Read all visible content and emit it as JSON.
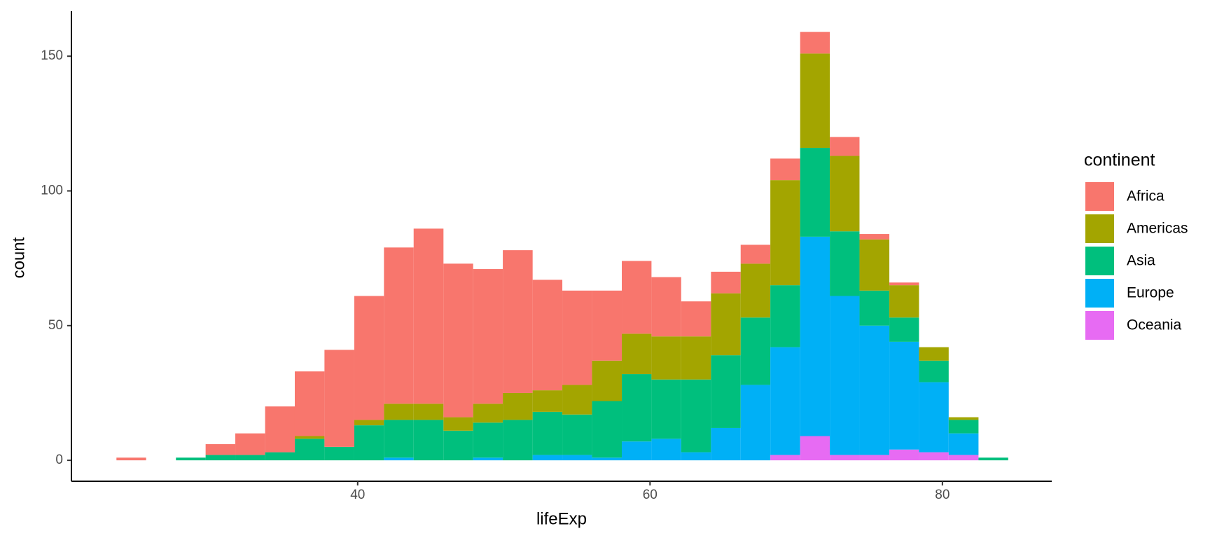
{
  "chart_data": {
    "type": "histogram",
    "x_label": "lifeExp",
    "y_label": "count",
    "legend_title": "continent",
    "legend_position": "right",
    "stacked": true,
    "grid": false,
    "bins": [
      23.5,
      25.53,
      27.57,
      29.6,
      31.63,
      33.67,
      35.7,
      37.73,
      39.77,
      41.8,
      43.83,
      45.87,
      47.9,
      49.93,
      51.97,
      54.0,
      56.03,
      58.07,
      60.1,
      62.13,
      64.17,
      66.2,
      68.23,
      70.27,
      72.3,
      74.33,
      76.37,
      78.4,
      80.43,
      82.47,
      84.5
    ],
    "series": [
      {
        "name": "Africa",
        "color": "#f8766d",
        "values": [
          1,
          0,
          0,
          4,
          8,
          17,
          24,
          36,
          46,
          58,
          65,
          57,
          50,
          53,
          41,
          35,
          26,
          27,
          22,
          13,
          8,
          7,
          8,
          8,
          7,
          2,
          1,
          0,
          0,
          0
        ]
      },
      {
        "name": "Americas",
        "color": "#a3a500",
        "values": [
          0,
          0,
          0,
          0,
          0,
          0,
          1,
          0,
          2,
          6,
          6,
          5,
          7,
          10,
          8,
          11,
          15,
          15,
          16,
          16,
          23,
          20,
          39,
          35,
          28,
          19,
          12,
          5,
          1,
          0
        ]
      },
      {
        "name": "Asia",
        "color": "#00bf7d",
        "values": [
          0,
          0,
          1,
          2,
          2,
          3,
          8,
          5,
          13,
          14,
          15,
          11,
          13,
          15,
          16,
          15,
          21,
          25,
          22,
          27,
          27,
          25,
          23,
          33,
          24,
          13,
          9,
          8,
          5,
          1
        ]
      },
      {
        "name": "Europe",
        "color": "#00b0f6",
        "values": [
          0,
          0,
          0,
          0,
          0,
          0,
          0,
          0,
          0,
          1,
          0,
          0,
          1,
          0,
          2,
          2,
          1,
          7,
          8,
          3,
          12,
          28,
          40,
          74,
          59,
          48,
          40,
          26,
          8,
          0
        ]
      },
      {
        "name": "Oceania",
        "color": "#e76bf3",
        "values": [
          0,
          0,
          0,
          0,
          0,
          0,
          0,
          0,
          0,
          0,
          0,
          0,
          0,
          0,
          0,
          0,
          0,
          0,
          0,
          0,
          0,
          0,
          2,
          9,
          2,
          2,
          4,
          3,
          2,
          0
        ]
      }
    ],
    "xlim": [
      20.42,
      87.48
    ],
    "ylim": [
      -7.77,
      166.7
    ],
    "xticks": [
      40,
      60,
      80
    ],
    "yticks": [
      0,
      50,
      100,
      150
    ]
  }
}
